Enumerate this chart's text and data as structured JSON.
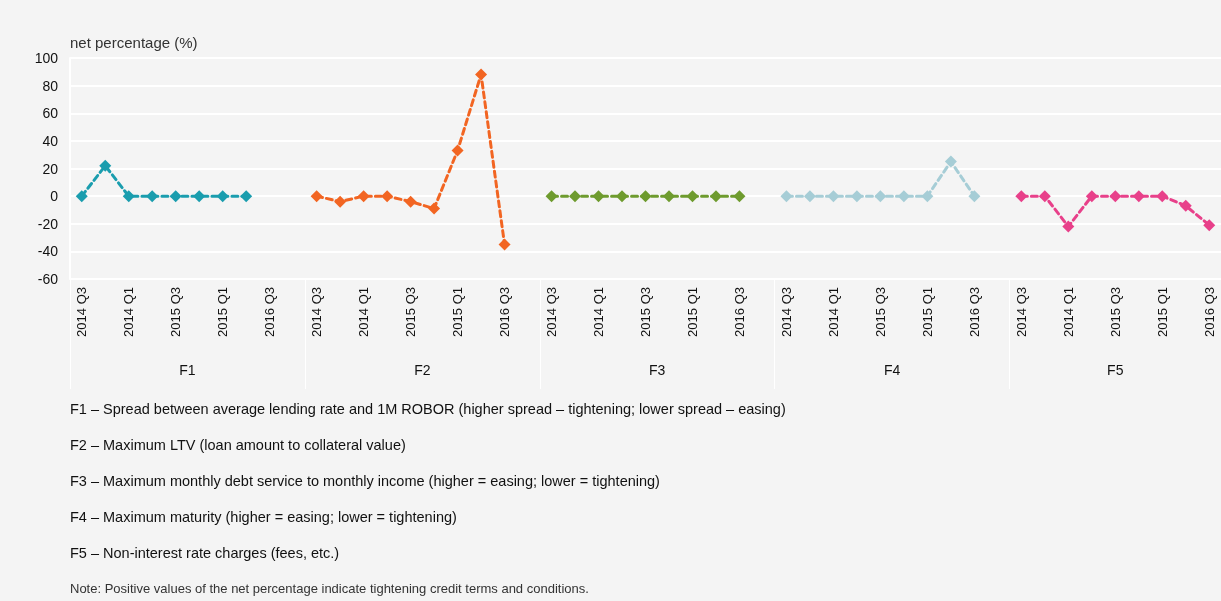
{
  "chart_data": {
    "type": "line",
    "ylabel": "net percentage (%)",
    "categories": [
      "2014 Q3",
      null,
      "2014 Q1",
      null,
      "2015 Q3",
      null,
      "2015 Q1",
      null,
      "2016 Q3",
      null,
      "2014 Q3",
      null,
      "2014 Q1",
      null,
      "2015 Q3",
      null,
      "2015 Q1",
      null,
      "2016 Q3",
      null,
      "2014 Q3",
      null,
      "2014 Q1",
      null,
      "2015 Q3",
      null,
      "2015 Q1",
      null,
      "2016 Q3",
      null,
      "2014 Q3",
      null,
      "2014 Q1",
      null,
      "2015 Q3",
      null,
      "2015 Q1",
      null,
      "2016 Q3",
      null,
      "2014 Q3",
      null,
      "2014 Q1",
      null,
      "2015 Q3",
      null,
      "2015 Q1",
      null,
      "2016 Q3"
    ],
    "series": [
      {
        "color": "#1a9dae",
        "values": [
          0,
          22,
          0,
          0,
          0,
          0,
          0,
          0,
          null,
          null,
          null,
          null,
          null,
          null,
          null,
          null,
          null,
          null,
          null,
          null,
          null,
          null,
          null,
          null,
          null,
          null,
          null,
          null,
          null,
          null,
          null,
          null,
          null,
          null,
          null,
          null,
          null,
          null,
          null,
          null,
          null,
          null,
          null,
          null,
          null,
          null,
          null,
          null,
          null
        ]
      },
      {
        "color": "#f26522",
        "values": [
          null,
          null,
          null,
          null,
          null,
          null,
          null,
          null,
          null,
          null,
          0,
          -4,
          0,
          0,
          -4,
          -9,
          33,
          88,
          -35,
          null,
          null,
          null,
          null,
          null,
          null,
          null,
          null,
          null,
          null,
          null,
          null,
          null,
          null,
          null,
          null,
          null,
          null,
          null,
          null,
          null,
          null,
          null,
          null,
          null,
          null,
          null,
          null,
          null,
          null
        ]
      },
      {
        "color": "#6e9b2e",
        "values": [
          null,
          null,
          null,
          null,
          null,
          null,
          null,
          null,
          null,
          null,
          null,
          null,
          null,
          null,
          null,
          null,
          null,
          null,
          null,
          null,
          0,
          0,
          0,
          0,
          0,
          0,
          0,
          0,
          0,
          null,
          null,
          null,
          null,
          null,
          null,
          null,
          null,
          null,
          null,
          null,
          null,
          null,
          null,
          null,
          null,
          null,
          null,
          null,
          null
        ]
      },
      {
        "color": "#a6cdd6",
        "values": [
          null,
          null,
          null,
          null,
          null,
          null,
          null,
          null,
          null,
          null,
          null,
          null,
          null,
          null,
          null,
          null,
          null,
          null,
          null,
          null,
          null,
          null,
          null,
          null,
          null,
          null,
          null,
          null,
          null,
          null,
          0,
          0,
          0,
          0,
          0,
          0,
          0,
          25,
          0,
          null,
          null,
          null,
          null,
          null,
          null,
          null,
          null,
          null,
          null
        ]
      },
      {
        "color": "#e8408a",
        "values": [
          null,
          null,
          null,
          null,
          null,
          null,
          null,
          null,
          null,
          null,
          null,
          null,
          null,
          null,
          null,
          null,
          null,
          null,
          null,
          null,
          null,
          null,
          null,
          null,
          null,
          null,
          null,
          null,
          null,
          null,
          null,
          null,
          null,
          null,
          null,
          null,
          null,
          null,
          null,
          null,
          0,
          0,
          -22,
          0,
          0,
          0,
          0,
          -7,
          -21
        ]
      }
    ],
    "ylim": [
      -60,
      100
    ],
    "yticks": [
      -60,
      -40,
      -20,
      0,
      20,
      40,
      60,
      80,
      100
    ],
    "grid": "y",
    "marker": "diamond",
    "line_style": "dashed",
    "annotations": [
      "F1",
      "F2",
      "F3",
      "F4",
      "F5",
      "F1 – Spread between average lending rate and 1M ROBOR (higher spread – tightening; lower spread – easing)",
      "F2 – Maximum LTV (loan amount to collateral value)",
      "F3 – Maximum monthly debt service to monthly income (higher = easing; lower = tightening)",
      "F4 – Maximum maturity (higher = easing; lower = tightening)",
      "F5 – Non-interest rate charges (fees, etc.)",
      "Note: Positive values of the net percentage indicate tightening credit terms and conditions."
    ]
  }
}
